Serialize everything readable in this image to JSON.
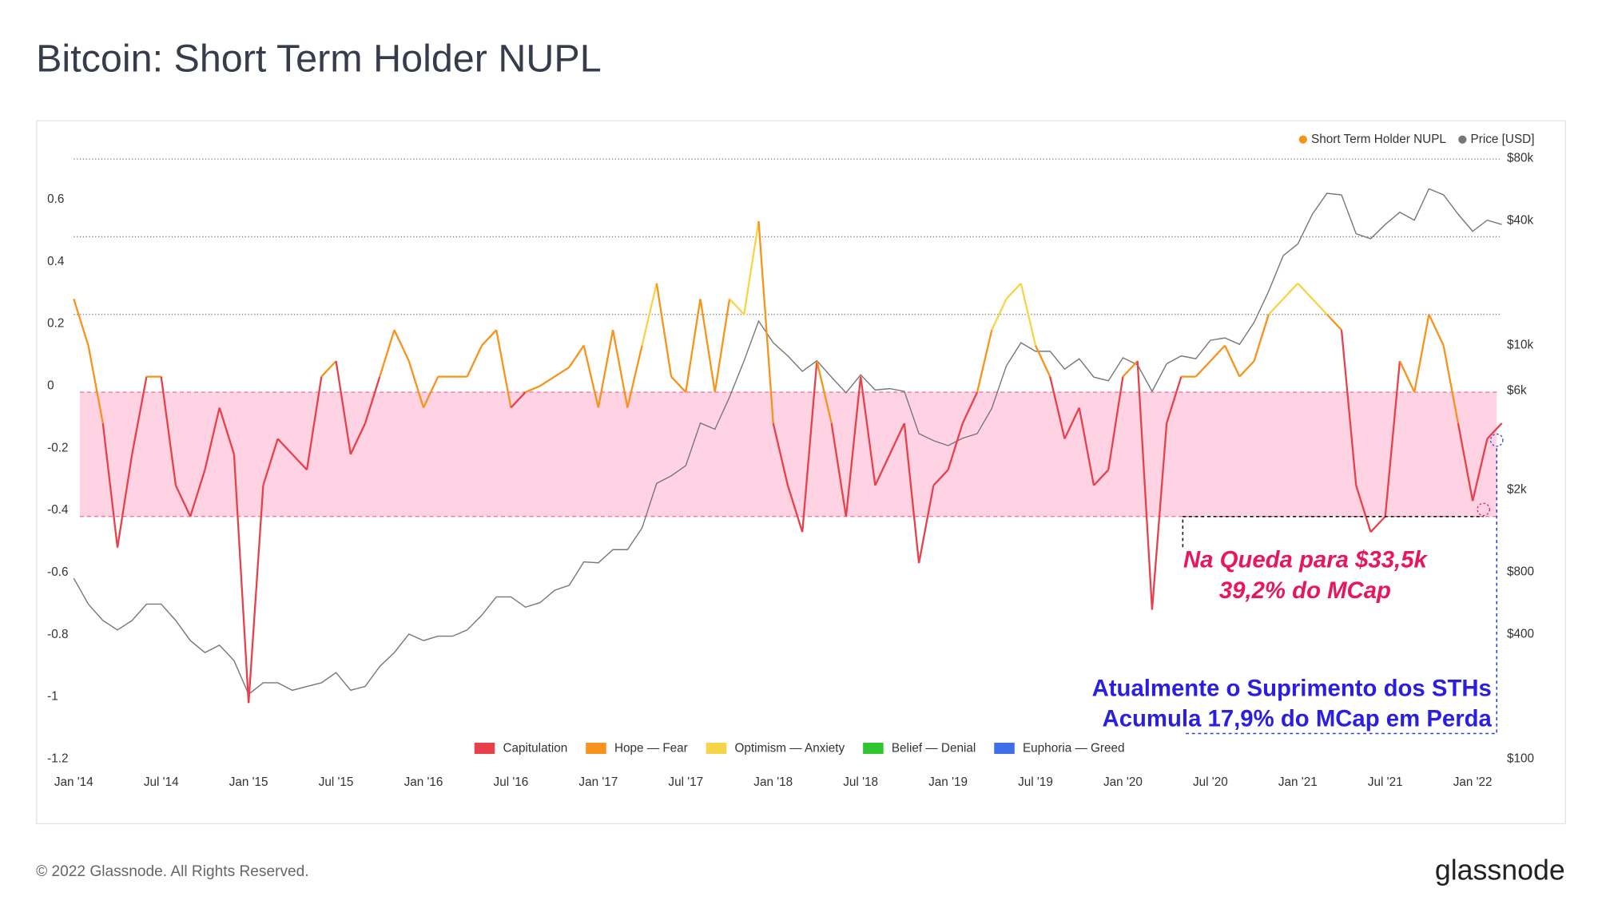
{
  "chart_data": {
    "type": "line",
    "title": "Bitcoin: Short Term Holder NUPL",
    "footer": "© 2022 Glassnode. All Rights Reserved.",
    "brand": "glassnode",
    "watermark": "glassnode",
    "x": [
      "2014-01",
      "2014-02",
      "2014-03",
      "2014-04",
      "2014-05",
      "2014-06",
      "2014-07",
      "2014-08",
      "2014-09",
      "2014-10",
      "2014-11",
      "2014-12",
      "2015-01",
      "2015-02",
      "2015-03",
      "2015-04",
      "2015-05",
      "2015-06",
      "2015-07",
      "2015-08",
      "2015-09",
      "2015-10",
      "2015-11",
      "2015-12",
      "2016-01",
      "2016-02",
      "2016-03",
      "2016-04",
      "2016-05",
      "2016-06",
      "2016-07",
      "2016-08",
      "2016-09",
      "2016-10",
      "2016-11",
      "2016-12",
      "2017-01",
      "2017-02",
      "2017-03",
      "2017-04",
      "2017-05",
      "2017-06",
      "2017-07",
      "2017-08",
      "2017-09",
      "2017-10",
      "2017-11",
      "2017-12",
      "2018-01",
      "2018-02",
      "2018-03",
      "2018-04",
      "2018-05",
      "2018-06",
      "2018-07",
      "2018-08",
      "2018-09",
      "2018-10",
      "2018-11",
      "2018-12",
      "2019-01",
      "2019-02",
      "2019-03",
      "2019-04",
      "2019-05",
      "2019-06",
      "2019-07",
      "2019-08",
      "2019-09",
      "2019-10",
      "2019-11",
      "2019-12",
      "2020-01",
      "2020-02",
      "2020-03",
      "2020-04",
      "2020-05",
      "2020-06",
      "2020-07",
      "2020-08",
      "2020-09",
      "2020-10",
      "2020-11",
      "2020-12",
      "2021-01",
      "2021-02",
      "2021-03",
      "2021-04",
      "2021-05",
      "2021-06",
      "2021-07",
      "2021-08",
      "2021-09",
      "2021-10",
      "2021-11",
      "2021-12",
      "2022-01",
      "2022-02",
      "2022-03"
    ],
    "xlim": [
      "2014-01",
      "2022-03"
    ],
    "xticks": [
      {
        "value": "2014-01",
        "label": "Jan '14"
      },
      {
        "value": "2014-07",
        "label": "Jul '14"
      },
      {
        "value": "2015-01",
        "label": "Jan '15"
      },
      {
        "value": "2015-07",
        "label": "Jul '15"
      },
      {
        "value": "2016-01",
        "label": "Jan '16"
      },
      {
        "value": "2016-07",
        "label": "Jul '16"
      },
      {
        "value": "2017-01",
        "label": "Jan '17"
      },
      {
        "value": "2017-07",
        "label": "Jul '17"
      },
      {
        "value": "2018-01",
        "label": "Jan '18"
      },
      {
        "value": "2018-07",
        "label": "Jul '18"
      },
      {
        "value": "2019-01",
        "label": "Jan '19"
      },
      {
        "value": "2019-07",
        "label": "Jul '19"
      },
      {
        "value": "2020-01",
        "label": "Jan '20"
      },
      {
        "value": "2020-07",
        "label": "Jul '20"
      },
      {
        "value": "2021-01",
        "label": "Jan '21"
      },
      {
        "value": "2021-07",
        "label": "Jul '21"
      },
      {
        "value": "2022-01",
        "label": "Jan '22"
      }
    ],
    "ylim": [
      -1.2,
      0.77
    ],
    "yticks": [
      0.6,
      0.4,
      0.2,
      0,
      -0.2,
      -0.4,
      -0.6,
      -0.8,
      -1,
      -1.2
    ],
    "y2lim": [
      100,
      91000
    ],
    "y2log": true,
    "y2ticks": [
      {
        "value": 80000,
        "label": "$80k"
      },
      {
        "value": 40000,
        "label": "$40k"
      },
      {
        "value": 10000,
        "label": "$10k"
      },
      {
        "value": 6000,
        "label": "$6k"
      },
      {
        "value": 2000,
        "label": "$2k"
      },
      {
        "value": 800,
        "label": "$800"
      },
      {
        "value": 400,
        "label": "$400"
      },
      {
        "value": 100,
        "label": "$100"
      }
    ],
    "series": [
      {
        "name": "Short Term Holder NUPL",
        "color": "#f7931a",
        "zoned": true,
        "values": [
          0.3,
          0.15,
          -0.1,
          -0.5,
          -0.2,
          0.05,
          0.05,
          -0.3,
          -0.4,
          -0.25,
          -0.05,
          -0.2,
          -1.0,
          -0.3,
          -0.15,
          -0.2,
          -0.25,
          0.05,
          0.1,
          -0.2,
          -0.1,
          0.05,
          0.2,
          0.1,
          -0.05,
          0.05,
          0.05,
          0.05,
          0.15,
          0.2,
          -0.05,
          0.0,
          0.02,
          0.05,
          0.08,
          0.15,
          -0.05,
          0.2,
          -0.05,
          0.15,
          0.35,
          0.05,
          0.0,
          0.3,
          0.0,
          0.3,
          0.25,
          0.55,
          -0.1,
          -0.3,
          -0.45,
          0.1,
          -0.1,
          -0.4,
          0.05,
          -0.3,
          -0.2,
          -0.1,
          -0.55,
          -0.3,
          -0.25,
          -0.1,
          0.0,
          0.2,
          0.3,
          0.35,
          0.15,
          0.05,
          -0.15,
          -0.05,
          -0.3,
          -0.25,
          0.05,
          0.1,
          -0.7,
          -0.1,
          0.05,
          0.05,
          0.1,
          0.15,
          0.05,
          0.1,
          0.25,
          0.3,
          0.35,
          0.3,
          0.25,
          0.2,
          -0.3,
          -0.45,
          -0.4,
          0.1,
          0.0,
          0.25,
          0.15,
          -0.1,
          -0.35,
          -0.15,
          -0.1
        ]
      },
      {
        "name": "Price [USD]",
        "color": "#777777",
        "axis": "y2",
        "values": [
          800,
          600,
          500,
          450,
          500,
          600,
          600,
          500,
          400,
          350,
          380,
          320,
          220,
          250,
          250,
          230,
          240,
          250,
          280,
          230,
          240,
          300,
          350,
          430,
          400,
          420,
          420,
          450,
          530,
          650,
          650,
          580,
          610,
          700,
          740,
          960,
          950,
          1100,
          1100,
          1400,
          2300,
          2500,
          2800,
          4500,
          4200,
          6000,
          9000,
          14000,
          11000,
          9500,
          8000,
          9000,
          7500,
          6300,
          7700,
          6500,
          6600,
          6400,
          4000,
          3700,
          3500,
          3800,
          4000,
          5300,
          8500,
          11000,
          10000,
          10000,
          8200,
          9200,
          7500,
          7200,
          9300,
          8600,
          6400,
          8700,
          9500,
          9200,
          11300,
          11600,
          10800,
          13800,
          19500,
          29000,
          33000,
          46000,
          58000,
          57000,
          37000,
          35000,
          41000,
          47000,
          43000,
          61000,
          57000,
          46000,
          38000,
          43000,
          41000
        ]
      }
    ],
    "zones": [
      {
        "name": "Capitulation",
        "color": "#e8404a"
      },
      {
        "name": "Hope — Fear",
        "color": "#f7931a"
      },
      {
        "name": "Optimism — Anxiety",
        "color": "#f5d547"
      },
      {
        "name": "Belief — Denial",
        "color": "#2ec52e"
      },
      {
        "name": "Euphoria — Greed",
        "color": "#3e6ee8"
      }
    ],
    "zone_bounds": [
      0,
      0.25,
      0.5,
      0.75
    ],
    "band": [
      -0.4,
      0
    ],
    "annotations": [
      {
        "lines": [
          "Na Queda para $33,5k",
          "39,2% do MCap"
        ],
        "color": "#e8175d"
      },
      {
        "lines": [
          "Atualmente o Suprimento dos STHs",
          "Acumula 17,9% do MCap em Perda"
        ],
        "color": "#2a1ee0"
      }
    ]
  }
}
